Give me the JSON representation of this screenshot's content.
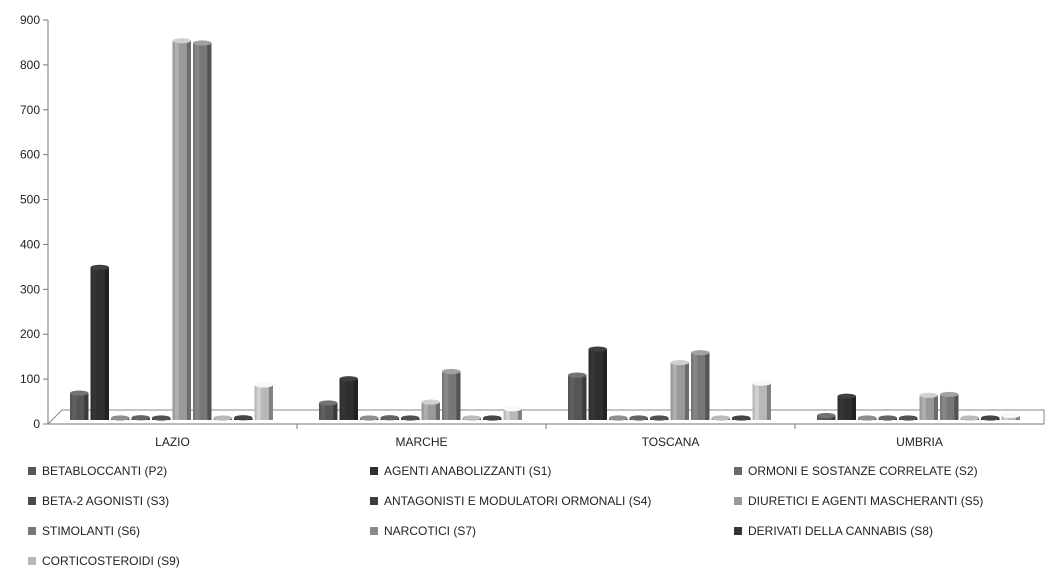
{
  "chart_data": {
    "type": "bar",
    "categories": [
      "LAZIO",
      "MARCHE",
      "TOSCANA",
      "UMBRIA"
    ],
    "ylim": [
      0,
      900
    ],
    "yticks": [
      0,
      100,
      200,
      300,
      400,
      500,
      600,
      700,
      800,
      900
    ],
    "grid": false,
    "legend_position": "bottom",
    "series": [
      {
        "name": "BETABLOCCANTI (P2)",
        "color": "#555555",
        "values": [
          60,
          38,
          100,
          10
        ]
      },
      {
        "name": "AGENTI ANABOLIZZANTI (S1)",
        "color": "#2f2f2f",
        "values": [
          340,
          92,
          158,
          53
        ]
      },
      {
        "name": "ORMONI E SOSTANZE CORRELATE (S2)",
        "color": "#6a6a6a",
        "values": [
          3,
          3,
          3,
          3
        ]
      },
      {
        "name": "BETA-2 AGONISTI (S3)",
        "color": "#4a4a4a",
        "values": [
          5,
          5,
          3,
          3
        ]
      },
      {
        "name": "ANTAGONISTI E MODULATORI ORMONALI (S4)",
        "color": "#3c3c3c",
        "values": [
          3,
          3,
          3,
          3
        ]
      },
      {
        "name": "DIURETICI E AGENTI MASCHERANTI (S5)",
        "color": "#9a9a9a",
        "values": [
          845,
          40,
          128,
          55
        ]
      },
      {
        "name": "STIMOLANTI (S6)",
        "color": "#777777",
        "values": [
          840,
          108,
          150,
          57
        ]
      },
      {
        "name": "NARCOTICI (S7)",
        "color": "#8a8a8a",
        "values": [
          3,
          3,
          3,
          3
        ]
      },
      {
        "name": "DERIVATI DELLA CANNABIS (S8)",
        "color": "#333333",
        "values": [
          5,
          3,
          3,
          3
        ]
      },
      {
        "name": "CORTICOSTEROIDI (S9)",
        "color": "#b8b8b8",
        "values": [
          78,
          25,
          82,
          10
        ]
      }
    ]
  }
}
